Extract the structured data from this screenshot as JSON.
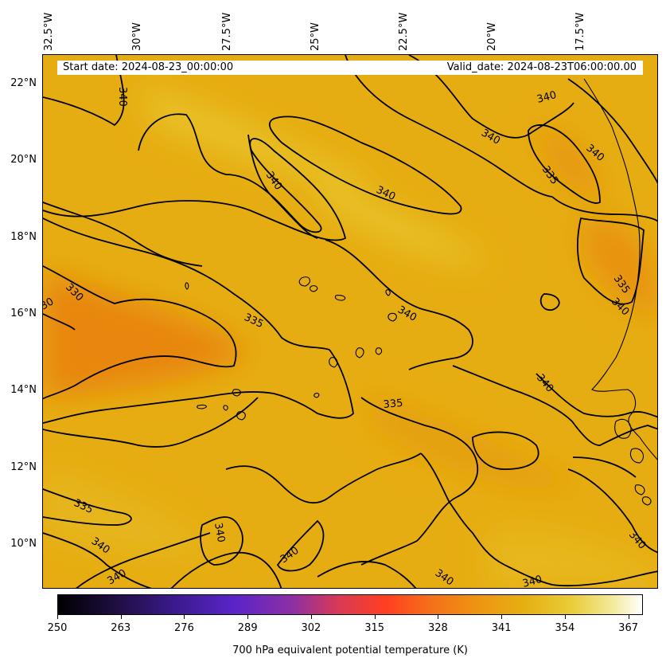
{
  "header": {
    "start_date": "Start date: 2024-08-23_00:00:00",
    "valid_date": "Valid_date: 2024-08-23T06:00:00.00"
  },
  "longitude_labels": [
    "32.5°W",
    "30°W",
    "27.5°W",
    "25°W",
    "22.5°W",
    "20°W",
    "17.5°W"
  ],
  "latitude_labels": [
    "22°N",
    "20°N",
    "18°N",
    "16°N",
    "14°N",
    "12°N",
    "10°N"
  ],
  "contour_labels": [
    "340",
    "340",
    "340",
    "340",
    "340",
    "335",
    "340",
    "335",
    "340",
    "330",
    "30",
    "335",
    "340",
    "335",
    "340",
    "340",
    "335",
    "340",
    "340",
    "340",
    "340",
    "340",
    "340"
  ],
  "colorbar": {
    "title": "700 hPa equivalent potential temperature (K)",
    "ticks": [
      "250",
      "263",
      "276",
      "289",
      "302",
      "315",
      "328",
      "341",
      "354",
      "367"
    ],
    "range": [
      250,
      370
    ]
  },
  "colors": {
    "field_base": "#e6ad12",
    "field_warm": "#e8860a",
    "contour": "#000000"
  }
}
